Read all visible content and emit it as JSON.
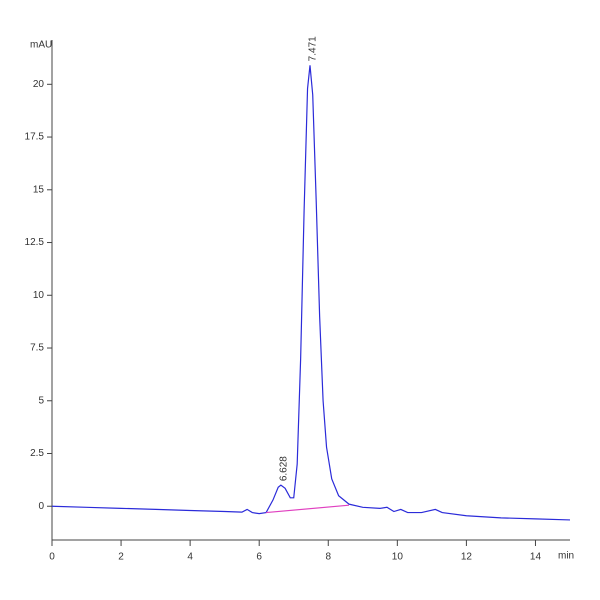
{
  "chart_data": {
    "type": "line",
    "y_label": "mAU",
    "x_label": "min",
    "xlim": [
      0,
      15
    ],
    "xticks": [
      0,
      2,
      4,
      6,
      8,
      10,
      12,
      14
    ],
    "ylim": [
      -1.6,
      22.1
    ],
    "yticks": [
      0,
      2.5,
      5,
      7.5,
      10,
      12.5,
      15,
      17.5,
      20
    ],
    "series": [
      {
        "color": "#2b2bd9",
        "x": [
          0,
          1,
          2,
          3,
          4,
          5,
          5.5,
          5.65,
          5.8,
          6.0,
          6.2,
          6.4,
          6.55,
          6.628,
          6.75,
          6.9,
          7.0,
          7.1,
          7.2,
          7.3,
          7.4,
          7.471,
          7.55,
          7.65,
          7.75,
          7.85,
          7.95,
          8.1,
          8.3,
          8.6,
          9.0,
          9.5,
          9.7,
          9.9,
          10.1,
          10.3,
          10.7,
          11.1,
          11.3,
          12,
          13,
          14,
          15
        ],
        "values": [
          0,
          -0.05,
          -0.1,
          -0.15,
          -0.2,
          -0.25,
          -0.28,
          -0.15,
          -0.3,
          -0.35,
          -0.3,
          0.3,
          0.9,
          1.0,
          0.85,
          0.4,
          0.4,
          2.0,
          7.0,
          14.0,
          19.8,
          20.9,
          19.5,
          14.5,
          9.0,
          5.0,
          2.8,
          1.3,
          0.5,
          0.1,
          -0.05,
          -0.1,
          -0.05,
          -0.25,
          -0.15,
          -0.3,
          -0.3,
          -0.15,
          -0.3,
          -0.45,
          -0.55,
          -0.6,
          -0.65
        ]
      },
      {
        "color": "#e040c0",
        "x": [
          6.2,
          8.6
        ],
        "values": [
          -0.3,
          0.05
        ]
      }
    ],
    "peaks": [
      {
        "x": 6.628,
        "y": 1.0
      },
      {
        "x": 7.471,
        "y": 20.9
      }
    ]
  }
}
